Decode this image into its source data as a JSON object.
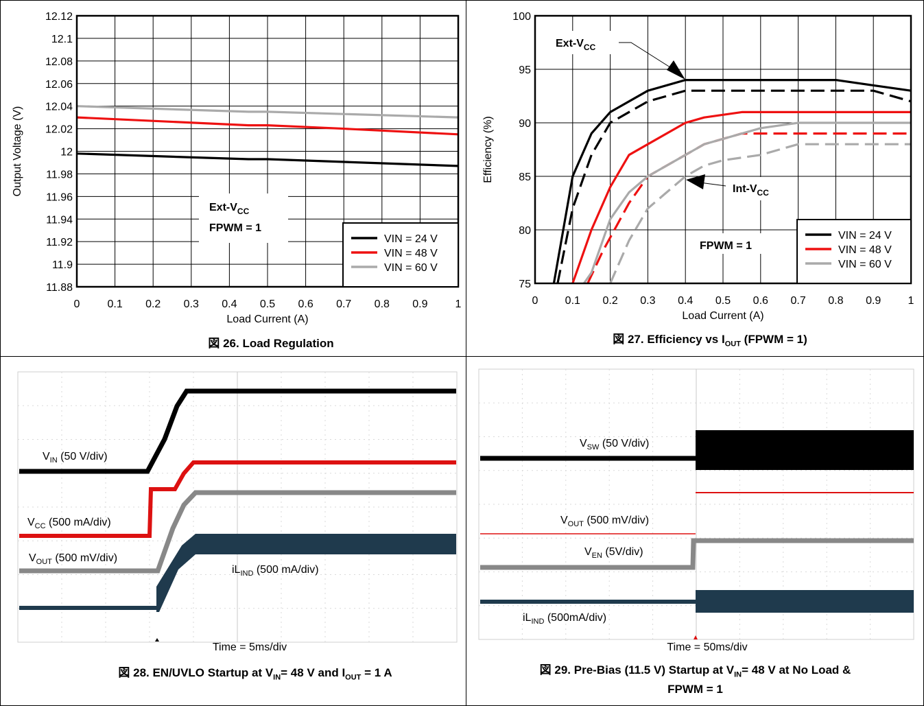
{
  "chart_data": [
    {
      "type": "line",
      "caption": "図 26. Load Regulation",
      "xlabel": "Load Current (A)",
      "ylabel": "Output Voltage (V)",
      "xlim": [
        0,
        1
      ],
      "ylim": [
        11.88,
        12.12
      ],
      "xticks": [
        "0",
        "0.1",
        "0.2",
        "0.3",
        "0.4",
        "0.5",
        "0.6",
        "0.7",
        "0.8",
        "0.9",
        "1"
      ],
      "yticks": [
        "11.88",
        "11.9",
        "11.92",
        "11.94",
        "11.96",
        "11.98",
        "12",
        "12.02",
        "12.04",
        "12.06",
        "12.08",
        "12.1",
        "12.12"
      ],
      "grid": true,
      "legend_position": "bottom-right",
      "annotation": {
        "line1": "Ext-V",
        "line1_sub": "CC",
        "line2": "FPWM = 1"
      },
      "series": [
        {
          "name": "VIN = 24 V",
          "color": "#000000",
          "x": [
            0,
            0.45,
            0.5,
            1
          ],
          "y": [
            11.998,
            11.993,
            11.993,
            11.987
          ]
        },
        {
          "name": "VIN = 48 V",
          "color": "#ee1111",
          "x": [
            0,
            0.45,
            0.5,
            0.7,
            1
          ],
          "y": [
            12.03,
            12.023,
            12.023,
            12.02,
            12.015
          ]
        },
        {
          "name": "VIN = 60 V",
          "color": "#aaaaaa",
          "x": [
            0,
            0.45,
            0.5,
            1
          ],
          "y": [
            12.04,
            12.035,
            12.035,
            12.03
          ]
        }
      ]
    },
    {
      "type": "line",
      "caption": "図 27. Efficiency vs I",
      "caption_sub": "OUT",
      "caption_tail": " (FPWM = 1)",
      "xlabel": "Load Current (A)",
      "ylabel": "Efficiency (%)",
      "xlim": [
        0,
        1
      ],
      "ylim": [
        75,
        100
      ],
      "xticks": [
        "0",
        "0.1",
        "0.2",
        "0.3",
        "0.4",
        "0.5",
        "0.6",
        "0.7",
        "0.8",
        "0.9",
        "1"
      ],
      "yticks": [
        "75",
        "80",
        "85",
        "90",
        "95",
        "100"
      ],
      "grid": true,
      "legend_position": "bottom-right",
      "annotations": [
        {
          "text": "Ext-V",
          "sub": "CC"
        },
        {
          "text": "Int-V",
          "sub": "CC"
        },
        {
          "text": "FPWM = 1",
          "sub": ""
        }
      ],
      "series": [
        {
          "name": "VIN = 24 V",
          "color": "#000000",
          "dash": false,
          "x": [
            0.05,
            0.1,
            0.15,
            0.2,
            0.3,
            0.4,
            0.5,
            0.6,
            0.7,
            0.8,
            0.9,
            1.0
          ],
          "y": [
            75,
            85,
            89,
            91,
            93,
            94,
            94,
            94,
            94,
            94,
            93.5,
            93
          ]
        },
        {
          "name": "",
          "color": "#000000",
          "dash": true,
          "x": [
            0.06,
            0.1,
            0.15,
            0.2,
            0.3,
            0.4,
            0.5,
            0.6,
            0.7,
            0.8,
            0.9,
            1.0
          ],
          "y": [
            75,
            82,
            87,
            90,
            92,
            93,
            93,
            93,
            93,
            93,
            93,
            92
          ]
        },
        {
          "name": "VIN = 48 V",
          "color": "#ee1111",
          "dash": false,
          "x": [
            0.1,
            0.15,
            0.2,
            0.25,
            0.3,
            0.4,
            0.45,
            0.55,
            0.6,
            0.7,
            0.8,
            0.9,
            1.0
          ],
          "y": [
            75,
            80,
            84,
            87,
            88,
            90,
            90.5,
            91,
            91,
            91,
            91,
            91,
            91
          ]
        },
        {
          "name": "",
          "color": "#ee1111",
          "dash": true,
          "x": [
            0.14,
            0.18,
            0.25,
            0.3,
            0.35,
            0.4,
            0.45,
            0.5,
            0.55,
            0.6,
            1.0
          ],
          "y": [
            75,
            78,
            82.5,
            85,
            86,
            87,
            88,
            88.5,
            89,
            89,
            89
          ]
        },
        {
          "name": "VIN = 60 V",
          "color": "#aaaaaa",
          "dash": false,
          "x": [
            0.13,
            0.15,
            0.2,
            0.25,
            0.3,
            0.4,
            0.45,
            0.5,
            0.6,
            0.7,
            0.8,
            1.0
          ],
          "y": [
            75,
            76,
            81,
            83.5,
            85,
            87,
            88,
            88.5,
            89.5,
            90,
            90,
            90
          ]
        },
        {
          "name": "",
          "color": "#aaaaaa",
          "dash": true,
          "x": [
            0.2,
            0.25,
            0.3,
            0.35,
            0.4,
            0.45,
            0.5,
            0.6,
            0.65,
            0.7,
            0.8,
            1.0
          ],
          "y": [
            75,
            79,
            82,
            83.5,
            85,
            86,
            86.5,
            87,
            87.5,
            88,
            88,
            88
          ]
        }
      ]
    },
    {
      "type": "line",
      "caption": "図 28. EN/UVLO Startup at V",
      "caption_sub1": "IN",
      "caption_mid": "= 48 V and I",
      "caption_sub2": "OUT",
      "caption_tail": " = 1 A",
      "time_label": "Time = 5ms/div",
      "traces": [
        {
          "label": "V",
          "sub": "IN",
          "tail": " (50 V/div)",
          "color": "#000000"
        },
        {
          "label": "V",
          "sub": "CC",
          "tail": " (500 mA/div)",
          "color": "#dd1111"
        },
        {
          "label": "V",
          "sub": "OUT",
          "tail": " (500 mV/div)",
          "color": "#888888"
        },
        {
          "label": "iL",
          "sub": "IND",
          "tail": " (500 mA/div)",
          "color": "#1f3a4d"
        }
      ]
    },
    {
      "type": "line",
      "caption": "図 29. Pre-Bias (11.5 V) Startup at V",
      "caption_sub": "IN",
      "caption_tail": "= 48 V at No Load &",
      "caption_line2": "FPWM = 1",
      "time_label": "Time = 50ms/div",
      "traces": [
        {
          "label": "V",
          "sub": "SW",
          "tail": " (50 V/div)",
          "color": "#000000"
        },
        {
          "label": "V",
          "sub": "OUT",
          "tail": " (500 mV/div)",
          "color": "#dd1111"
        },
        {
          "label": "V",
          "sub": "EN",
          "tail": " (5V/div)",
          "color": "#888888"
        },
        {
          "label": "iL",
          "sub": "IND",
          "tail": " (500mA/div)",
          "color": "#1f3a4d"
        }
      ]
    }
  ]
}
